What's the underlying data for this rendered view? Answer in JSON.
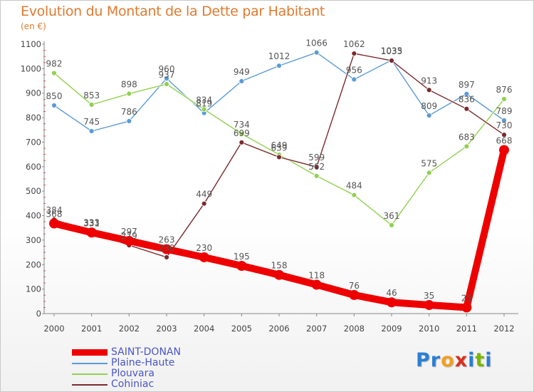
{
  "title": "Evolution du Montant de la Dette par Habitant",
  "unit_label": "(en €)",
  "logo": {
    "text": "Proxiti",
    "letters": [
      "P",
      "r",
      "o",
      "x",
      "i",
      "t",
      "i"
    ],
    "colors": [
      "#2a7fd4",
      "#2a7fd4",
      "#f0a020",
      "#d7301f",
      "#2a7fd4",
      "#7ab800",
      "#2a7fd4"
    ]
  },
  "chart_data": {
    "type": "line",
    "x": [
      "2000",
      "2001",
      "2002",
      "2003",
      "2004",
      "2005",
      "2006",
      "2007",
      "2008",
      "2009",
      "2010",
      "2011",
      "2012"
    ],
    "ylim": [
      0,
      1100
    ],
    "yticks": [
      0,
      100,
      200,
      300,
      400,
      500,
      600,
      700,
      800,
      900,
      1000,
      1100
    ],
    "grid": false,
    "legend_position": "bottom-left",
    "series": [
      {
        "name": "Plaine-Haute",
        "color": "#5b9bd5",
        "values": [
          850,
          745,
          786,
          960,
          819,
          949,
          1012,
          1066,
          956,
          1035,
          809,
          897,
          789
        ],
        "labels": [
          "850",
          "745",
          "786",
          "960",
          "819",
          "949",
          "1012",
          "1066",
          "956",
          "1035",
          "809",
          "897",
          "789"
        ]
      },
      {
        "name": "Plouvara",
        "color": "#92d050",
        "values": [
          982,
          853,
          898,
          937,
          834,
          734,
          649,
          562,
          484,
          361,
          575,
          683,
          876
        ],
        "labels": [
          "982",
          "853",
          "898",
          "937",
          "834",
          "734",
          "649",
          "562",
          "484",
          "361",
          "575",
          "683",
          "876"
        ]
      },
      {
        "name": "Cohiniac",
        "color": "#7b2a2e",
        "values": [
          384,
          333,
          279,
          230,
          449,
          699,
          639,
          599,
          1062,
          1033,
          913,
          836,
          730
        ],
        "labels": [
          "384",
          "333",
          "279",
          "230",
          "449",
          "699",
          "639",
          "599",
          "1062",
          "1033",
          "913",
          "836",
          "730"
        ]
      },
      {
        "name": "SAINT-DONAN",
        "color": "#ee0000",
        "values": [
          368,
          331,
          297,
          263,
          230,
          195,
          158,
          118,
          76,
          46,
          35,
          25,
          668
        ],
        "labels": [
          "368",
          "331",
          "297",
          "263",
          "230",
          "195",
          "158",
          "118",
          "76",
          "46",
          "35",
          "25",
          "668"
        ],
        "highlight": true
      }
    ]
  },
  "legend": [
    {
      "name": "SAINT-DONAN",
      "color": "#ee0000",
      "thick": true
    },
    {
      "name": "Plaine-Haute",
      "color": "#5b9bd5",
      "thick": false
    },
    {
      "name": "Plouvara",
      "color": "#92d050",
      "thick": false
    },
    {
      "name": "Cohiniac",
      "color": "#7b2a2e",
      "thick": false
    }
  ]
}
